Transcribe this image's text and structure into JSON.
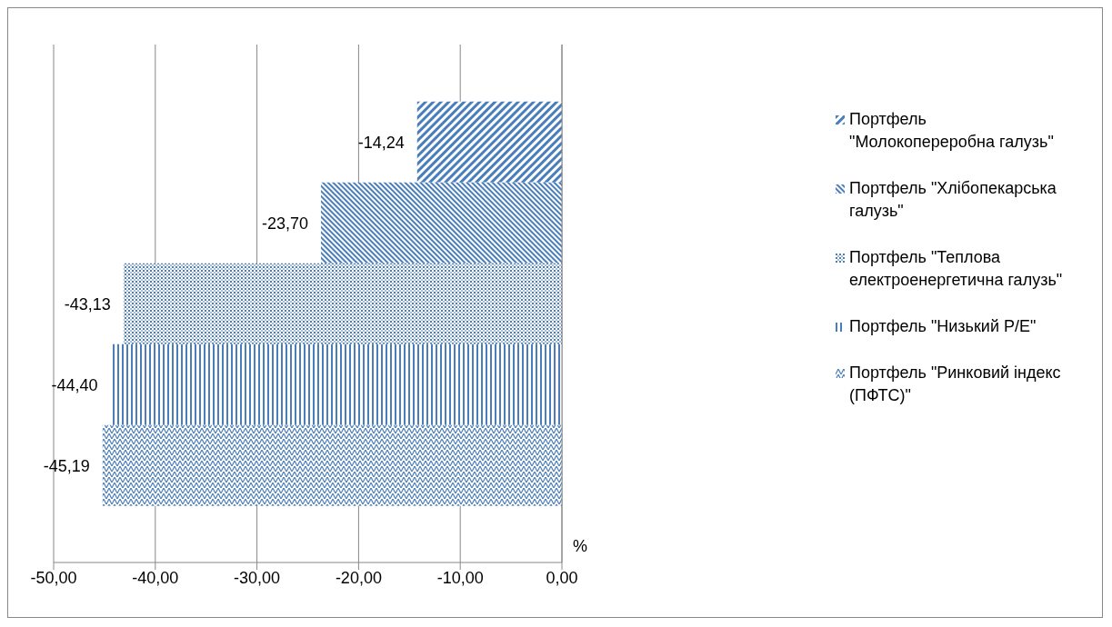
{
  "chart_data": {
    "type": "bar",
    "orientation": "horizontal",
    "categories": [
      null
    ],
    "series": [
      {
        "name": "Портфель \"Молокопереробна галузь\"",
        "color": "#4a7ebb",
        "values": [
          -14.24
        ],
        "value_labels": [
          "-14,24"
        ]
      },
      {
        "name": "Портфель \"Хлібопекарська галузь\"",
        "color": "#4a7ebb",
        "values": [
          -23.7
        ],
        "value_labels": [
          "-23,70"
        ]
      },
      {
        "name": "Портфель \"Теплова електроенергетична галузь\"",
        "color": "#4a7ebb",
        "values": [
          -43.13
        ],
        "value_labels": [
          "-43,13"
        ]
      },
      {
        "name": "Портфель \"Низький P/E\"",
        "color": "#4a7ebb",
        "values": [
          -44.4
        ],
        "value_labels": [
          "-44,40"
        ]
      },
      {
        "name": "Портфель \"Ринковий індекс (ПФТС)\"",
        "color": "#4a7ebb",
        "values": [
          -45.19
        ],
        "value_labels": [
          "-45,19"
        ]
      }
    ],
    "xlabel": "%",
    "xlim": [
      -50,
      0
    ],
    "xticks": [
      {
        "value": -50,
        "label": "-50,00"
      },
      {
        "value": -40,
        "label": "-40,00"
      },
      {
        "value": -30,
        "label": "-30,00"
      },
      {
        "value": -20,
        "label": "-20,00"
      },
      {
        "value": -10,
        "label": "-10,00"
      },
      {
        "value": 0,
        "label": "0,00"
      }
    ],
    "grid": "x",
    "legend": "right"
  }
}
